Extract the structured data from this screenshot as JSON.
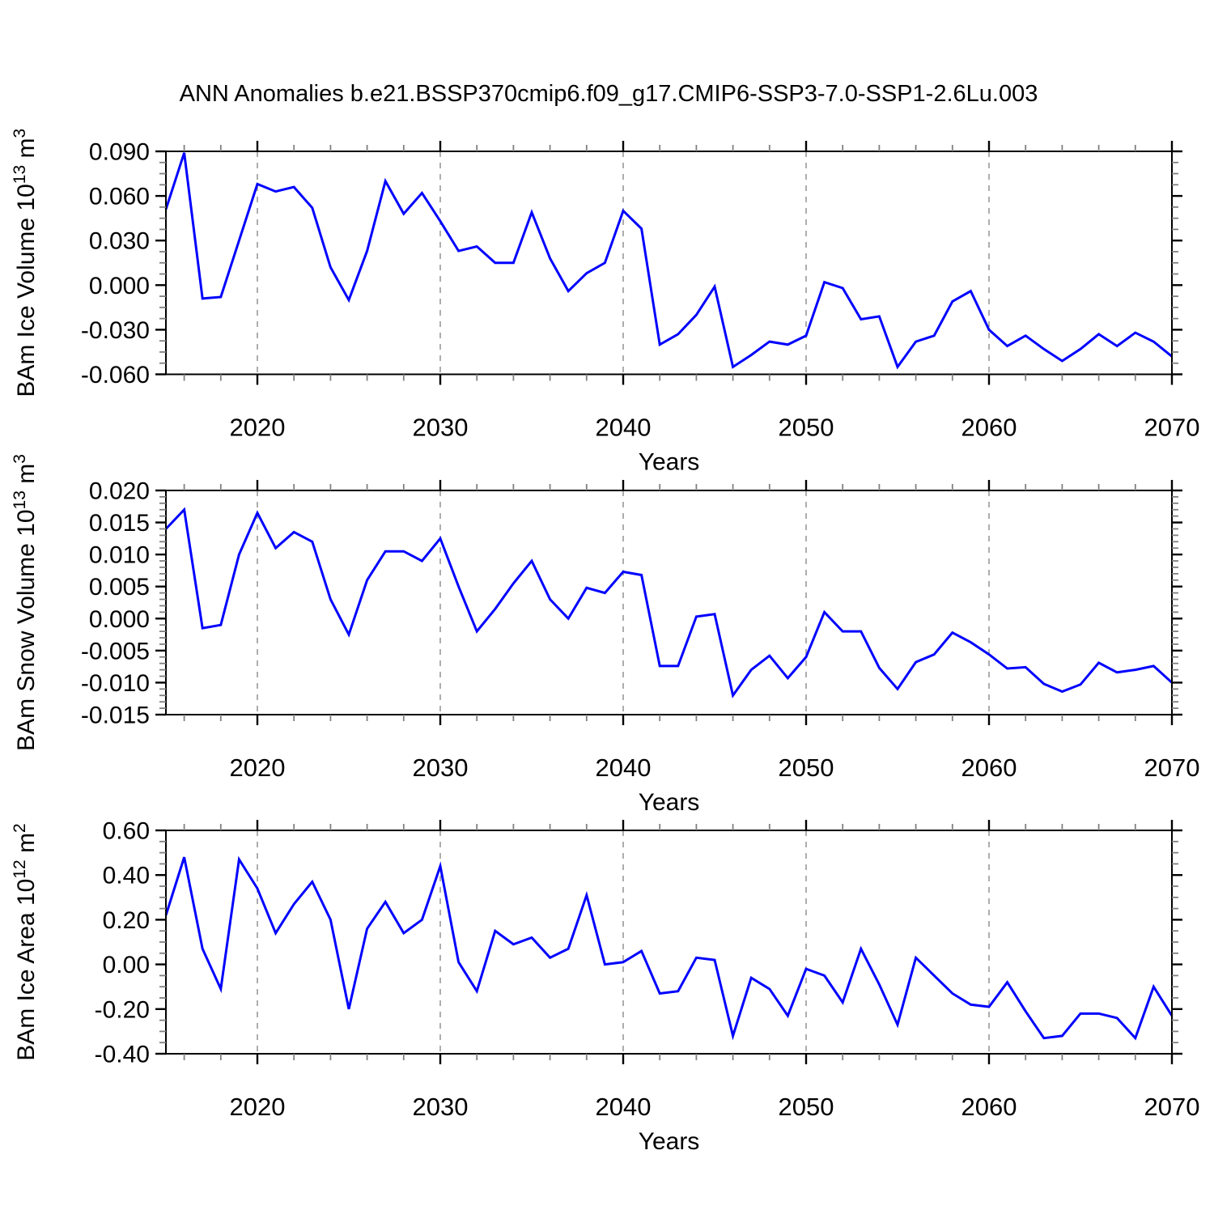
{
  "title": "ANN Anomalies b.e21.BSSP370cmip6.f09_g17.CMIP6-SSP3-7.0-SSP1-2.6Lu.003",
  "xlabel": "Years",
  "line_color": "#0000FF",
  "grid_color": "#999999",
  "axis_color": "#000000",
  "minor_tick_color": "#808080",
  "x_axis": {
    "min": 2015,
    "max": 2070,
    "major_ticks": [
      2020,
      2030,
      2040,
      2050,
      2060,
      2070
    ],
    "tick_labels": [
      "2020",
      "2030",
      "2040",
      "2050",
      "2060",
      "2070"
    ],
    "grid_ticks": [
      2020,
      2030,
      2040,
      2050,
      2060
    ],
    "minor_step": 2
  },
  "years": [
    2015,
    2016,
    2017,
    2018,
    2019,
    2020,
    2021,
    2022,
    2023,
    2024,
    2025,
    2026,
    2027,
    2028,
    2029,
    2030,
    2031,
    2032,
    2033,
    2034,
    2035,
    2036,
    2037,
    2038,
    2039,
    2040,
    2041,
    2042,
    2043,
    2044,
    2045,
    2046,
    2047,
    2048,
    2049,
    2050,
    2051,
    2052,
    2053,
    2054,
    2055,
    2056,
    2057,
    2058,
    2059,
    2060,
    2061,
    2062,
    2063,
    2064,
    2065,
    2066,
    2067,
    2068,
    2069,
    2070
  ],
  "chart_data": [
    {
      "type": "line",
      "name": "ice-volume",
      "ylabel_parts": [
        {
          "t": "BAm Ice Volume 10"
        },
        {
          "t": "13",
          "sup": true
        },
        {
          "t": " m"
        },
        {
          "t": "3",
          "sup": true
        }
      ],
      "ylabel_plain": "BAm Ice Volume 10^13 m^3",
      "ylim": [
        -0.06,
        0.09
      ],
      "y_major_step": 0.03,
      "y_minor_step": 0.0075,
      "yticks": [
        {
          "v": 0.09,
          "label": "0.090"
        },
        {
          "v": 0.06,
          "label": "0.060"
        },
        {
          "v": 0.03,
          "label": "0.030"
        },
        {
          "v": 0.0,
          "label": "0.000"
        },
        {
          "v": -0.03,
          "label": "-0.030"
        },
        {
          "v": -0.06,
          "label": "-0.060"
        }
      ],
      "values": [
        0.051,
        0.089,
        -0.009,
        -0.008,
        0.03,
        0.068,
        0.063,
        0.066,
        0.052,
        0.012,
        -0.01,
        0.023,
        0.07,
        0.048,
        0.062,
        0.043,
        0.023,
        0.026,
        0.015,
        0.015,
        0.049,
        0.018,
        -0.004,
        0.008,
        0.015,
        0.05,
        0.038,
        -0.04,
        -0.033,
        -0.02,
        -0.001,
        -0.055,
        -0.047,
        -0.038,
        -0.04,
        -0.034,
        0.002,
        -0.002,
        -0.023,
        -0.021,
        -0.055,
        -0.038,
        -0.034,
        -0.011,
        -0.004,
        -0.03,
        -0.041,
        -0.034,
        -0.043,
        -0.051,
        -0.043,
        -0.033,
        -0.041,
        -0.032,
        -0.038,
        -0.048
      ]
    },
    {
      "type": "line",
      "name": "snow-volume",
      "ylabel_parts": [
        {
          "t": "BAm Snow Volume 10"
        },
        {
          "t": "13",
          "sup": true
        },
        {
          "t": " m"
        },
        {
          "t": "3",
          "sup": true
        }
      ],
      "ylabel_plain": "BAm Snow Volume 10^13 m^3",
      "ylim": [
        -0.015,
        0.02
      ],
      "y_major_step": 0.005,
      "y_minor_step": 0.001,
      "yticks": [
        {
          "v": 0.02,
          "label": "0.020"
        },
        {
          "v": 0.015,
          "label": "0.015"
        },
        {
          "v": 0.01,
          "label": "0.010"
        },
        {
          "v": 0.005,
          "label": "0.005"
        },
        {
          "v": 0.0,
          "label": "0.000"
        },
        {
          "v": -0.005,
          "label": "-0.005"
        },
        {
          "v": -0.01,
          "label": "-0.010"
        },
        {
          "v": -0.015,
          "label": "-0.015"
        }
      ],
      "values": [
        0.014,
        0.017,
        -0.0015,
        -0.001,
        0.01,
        0.0165,
        0.011,
        0.0135,
        0.012,
        0.003,
        -0.0025,
        0.006,
        0.0105,
        0.0105,
        0.009,
        0.0125,
        0.005,
        -0.002,
        0.0015,
        0.0055,
        0.009,
        0.003,
        0.0,
        0.0048,
        0.004,
        0.0073,
        0.0068,
        -0.0074,
        -0.0074,
        0.0003,
        0.0007,
        -0.012,
        -0.008,
        -0.0058,
        -0.0093,
        -0.006,
        0.001,
        -0.002,
        -0.002,
        -0.0077,
        -0.011,
        -0.0068,
        -0.0056,
        -0.0022,
        -0.0037,
        -0.0056,
        -0.0078,
        -0.0076,
        -0.0102,
        -0.0114,
        -0.0103,
        -0.0069,
        -0.0084,
        -0.008,
        -0.0074,
        -0.01
      ]
    },
    {
      "type": "line",
      "name": "ice-area",
      "ylabel_parts": [
        {
          "t": "BAm Ice Area 10"
        },
        {
          "t": "12",
          "sup": true
        },
        {
          "t": " m"
        },
        {
          "t": "2",
          "sup": true
        }
      ],
      "ylabel_plain": "BAm Ice Area 10^12 m^2",
      "ylim": [
        -0.4,
        0.6
      ],
      "y_major_step": 0.2,
      "y_minor_step": 0.05,
      "yticks": [
        {
          "v": 0.6,
          "label": "0.60"
        },
        {
          "v": 0.4,
          "label": "0.40"
        },
        {
          "v": 0.2,
          "label": "0.20"
        },
        {
          "v": 0.0,
          "label": "0.00"
        },
        {
          "v": -0.2,
          "label": "-0.20"
        },
        {
          "v": -0.4,
          "label": "-0.40"
        }
      ],
      "values": [
        0.22,
        0.48,
        0.07,
        -0.11,
        0.47,
        0.34,
        0.14,
        0.27,
        0.37,
        0.2,
        -0.2,
        0.16,
        0.28,
        0.14,
        0.2,
        0.44,
        0.01,
        -0.12,
        0.15,
        0.09,
        0.12,
        0.03,
        0.07,
        0.31,
        0.0,
        0.01,
        0.06,
        -0.13,
        -0.12,
        0.03,
        0.02,
        -0.32,
        -0.06,
        -0.11,
        -0.23,
        -0.02,
        -0.05,
        -0.17,
        0.07,
        -0.09,
        -0.27,
        0.03,
        -0.05,
        -0.13,
        -0.18,
        -0.19,
        -0.08,
        -0.21,
        -0.33,
        -0.32,
        -0.22,
        -0.22,
        -0.24,
        -0.33,
        -0.1,
        -0.23
      ]
    }
  ]
}
